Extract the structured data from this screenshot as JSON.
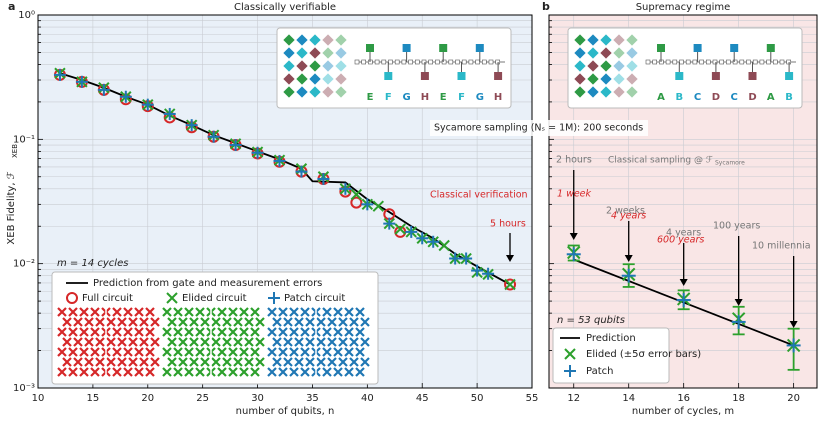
{
  "chart_data": [
    {
      "type": "scatter",
      "panel_label": "a",
      "title": "Classically verifiable",
      "x_label": "number of qubits, n",
      "y_label": "XEB Fidelity, ℱ",
      "y_label_sub": "XEB",
      "xlim": [
        10,
        55
      ],
      "xticks": [
        10,
        15,
        20,
        25,
        30,
        35,
        40,
        45,
        50,
        55
      ],
      "ylim": [
        0.001,
        1
      ],
      "log_y": true,
      "grid": true,
      "background": "#e9f0f8",
      "yticks": [
        {
          "value": 0.001,
          "label": "10⁻³"
        },
        {
          "value": 0.01,
          "label": "10⁻²"
        },
        {
          "value": 0.1,
          "label": "10⁻¹"
        },
        {
          "value": 1,
          "label": "10⁰"
        }
      ],
      "y_minor_ticks": [
        0.002,
        0.003,
        0.004,
        0.005,
        0.006,
        0.007,
        0.008,
        0.009,
        0.02,
        0.03,
        0.04,
        0.05,
        0.06,
        0.07,
        0.08,
        0.09,
        0.2,
        0.3,
        0.4,
        0.5,
        0.6,
        0.7,
        0.8,
        0.9
      ],
      "series": [
        {
          "name": "Prediction from gate and measurement errors",
          "marker": "line",
          "color": "#000000",
          "x": [
            12,
            14,
            16,
            18,
            20,
            22,
            24,
            26,
            28,
            30,
            32,
            34,
            35,
            38,
            40,
            42,
            44,
            46,
            48,
            50,
            53
          ],
          "values": [
            0.34,
            0.3,
            0.26,
            0.22,
            0.19,
            0.155,
            0.13,
            0.108,
            0.093,
            0.08,
            0.069,
            0.058,
            0.046,
            0.045,
            0.033,
            0.026,
            0.02,
            0.016,
            0.012,
            0.0095,
            0.0068
          ]
        },
        {
          "name": "Full circuit",
          "marker": "circle",
          "color": "#d62728",
          "x": [
            12,
            14,
            16,
            18,
            20,
            22,
            24,
            26,
            28,
            30,
            32,
            34,
            36,
            38,
            39,
            42,
            43,
            53
          ],
          "values": [
            0.33,
            0.29,
            0.25,
            0.21,
            0.185,
            0.15,
            0.125,
            0.105,
            0.09,
            0.077,
            0.066,
            0.055,
            0.048,
            0.038,
            0.031,
            0.025,
            0.018,
            0.0068
          ]
        },
        {
          "name": "Elided circuit",
          "marker": "x",
          "color": "#2ca02c",
          "x": [
            12,
            14,
            16,
            18,
            20,
            22,
            24,
            26,
            28,
            30,
            32,
            34,
            36,
            38,
            39,
            40,
            41,
            42,
            43,
            44,
            45,
            46,
            47,
            48,
            49,
            50,
            51,
            53
          ],
          "values": [
            0.34,
            0.29,
            0.26,
            0.22,
            0.19,
            0.16,
            0.13,
            0.108,
            0.092,
            0.079,
            0.068,
            0.058,
            0.05,
            0.04,
            0.036,
            0.03,
            0.029,
            0.021,
            0.019,
            0.018,
            0.016,
            0.015,
            0.014,
            0.011,
            0.011,
            0.0085,
            0.0082,
            0.0068
          ]
        },
        {
          "name": "Patch circuit",
          "marker": "plus",
          "color": "#1f77b4",
          "x": [
            12,
            14,
            16,
            18,
            20,
            22,
            24,
            26,
            28,
            30,
            32,
            34,
            36,
            38,
            40,
            42,
            44,
            45,
            46,
            48,
            49,
            50,
            51
          ],
          "values": [
            0.33,
            0.29,
            0.25,
            0.22,
            0.19,
            0.16,
            0.13,
            0.105,
            0.09,
            0.078,
            0.067,
            0.055,
            0.048,
            0.04,
            0.03,
            0.021,
            0.018,
            0.016,
            0.015,
            0.011,
            0.011,
            0.0088,
            0.0083
          ]
        }
      ],
      "cycles_note": "m = 14 cycles",
      "verification_note": "Classical verification",
      "verification_time": "5 hours",
      "sampling_note": "Sycamore sampling (Nₛ = 1M): 200 seconds",
      "inset_labels": [
        "E",
        "F",
        "G",
        "H",
        "E",
        "F",
        "G",
        "H"
      ]
    },
    {
      "type": "scatter",
      "panel_label": "b",
      "title": "Supremacy regime",
      "x_label": "number of cycles, m",
      "xlim": [
        11.1,
        20.85
      ],
      "xticks": [
        12,
        14,
        16,
        18,
        20
      ],
      "ylim": [
        0.001,
        1
      ],
      "log_y": true,
      "grid": true,
      "background": "#f9e6e6",
      "yticks": [
        0.001,
        0.01,
        0.1,
        1
      ],
      "y_minor_ticks": [
        0.002,
        0.003,
        0.004,
        0.005,
        0.006,
        0.007,
        0.008,
        0.009,
        0.02,
        0.03,
        0.04,
        0.05,
        0.06,
        0.07,
        0.08,
        0.09,
        0.2,
        0.3,
        0.4,
        0.5,
        0.6,
        0.7,
        0.8,
        0.9
      ],
      "series": [
        {
          "name": "Prediction",
          "marker": "line",
          "color": "#000000",
          "x": [
            12,
            20
          ],
          "values": [
            0.0108,
            0.0022
          ]
        },
        {
          "name": "Elided (±5σ error bars)",
          "marker": "x",
          "color": "#2ca02c",
          "x": [
            12,
            14,
            16,
            18,
            20
          ],
          "values": [
            0.0123,
            0.0082,
            0.0052,
            0.0036,
            0.0022
          ],
          "errors": [
            0.0017,
            0.0017,
            0.0009,
            0.0009,
            0.0008
          ]
        },
        {
          "name": "Patch",
          "marker": "plus",
          "color": "#1f77b4",
          "x": [
            12,
            14,
            16,
            18,
            20
          ],
          "values": [
            0.0119,
            0.008,
            0.0051,
            0.0034,
            0.0022
          ]
        }
      ],
      "qubits_note": "n = 53 qubits",
      "classical_note": "Classical sampling @ ℱ",
      "classical_note_sub": "Sycamore",
      "simulation_times": [
        "2 hours",
        "2 weeks",
        "4 years",
        "100 years",
        "10 millennia"
      ],
      "alternate_times": [
        "1 week",
        "4 years",
        "600 years"
      ],
      "inset_labels": [
        "A",
        "B",
        "C",
        "D",
        "C",
        "D",
        "A",
        "B"
      ]
    }
  ]
}
